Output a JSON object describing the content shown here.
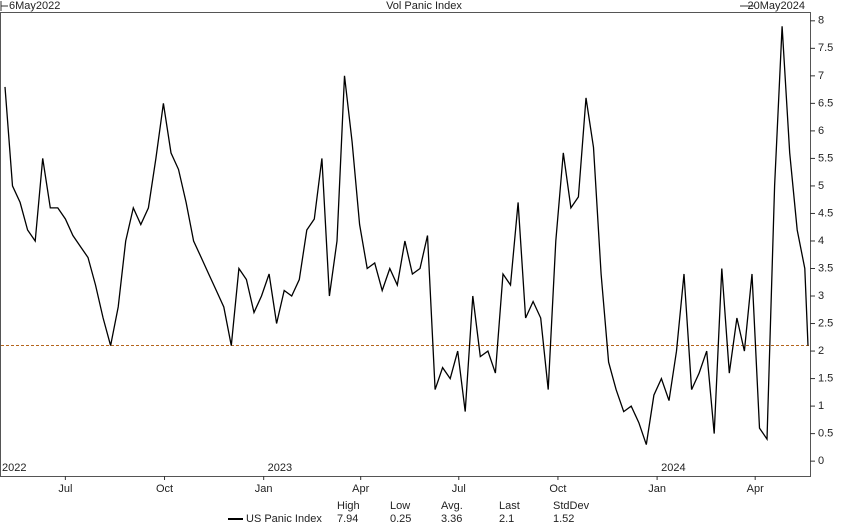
{
  "chart_data": {
    "type": "line",
    "title": "Vol Panic Index",
    "start_label": "6May2022",
    "end_label": "20May2024",
    "x": [
      "2022-05-06",
      "2022-05-13",
      "2022-05-20",
      "2022-05-27",
      "2022-06-03",
      "2022-06-10",
      "2022-06-17",
      "2022-06-24",
      "2022-07-01",
      "2022-07-08",
      "2022-07-15",
      "2022-07-22",
      "2022-07-29",
      "2022-08-05",
      "2022-08-12",
      "2022-08-19",
      "2022-08-26",
      "2022-09-02",
      "2022-09-09",
      "2022-09-16",
      "2022-09-23",
      "2022-09-30",
      "2022-10-07",
      "2022-10-14",
      "2022-10-21",
      "2022-10-28",
      "2022-11-04",
      "2022-11-11",
      "2022-11-18",
      "2022-11-25",
      "2022-12-02",
      "2022-12-09",
      "2022-12-16",
      "2022-12-23",
      "2022-12-30",
      "2023-01-06",
      "2023-01-13",
      "2023-01-20",
      "2023-01-27",
      "2023-02-03",
      "2023-02-10",
      "2023-02-17",
      "2023-02-24",
      "2023-03-03",
      "2023-03-10",
      "2023-03-17",
      "2023-03-24",
      "2023-03-31",
      "2023-04-07",
      "2023-04-14",
      "2023-04-21",
      "2023-04-28",
      "2023-05-05",
      "2023-05-12",
      "2023-05-19",
      "2023-05-26",
      "2023-06-02",
      "2023-06-09",
      "2023-06-16",
      "2023-06-23",
      "2023-06-30",
      "2023-07-07",
      "2023-07-14",
      "2023-07-21",
      "2023-07-28",
      "2023-08-04",
      "2023-08-11",
      "2023-08-18",
      "2023-08-25",
      "2023-09-01",
      "2023-09-08",
      "2023-09-15",
      "2023-09-22",
      "2023-09-29",
      "2023-10-06",
      "2023-10-13",
      "2023-10-20",
      "2023-10-27",
      "2023-11-03",
      "2023-11-10",
      "2023-11-17",
      "2023-11-24",
      "2023-12-01",
      "2023-12-08",
      "2023-12-15",
      "2023-12-22",
      "2023-12-29",
      "2024-01-05",
      "2024-01-12",
      "2024-01-19",
      "2024-01-26",
      "2024-02-02",
      "2024-02-09",
      "2024-02-16",
      "2024-02-23",
      "2024-03-01",
      "2024-03-08",
      "2024-03-15",
      "2024-03-22",
      "2024-03-29",
      "2024-04-05",
      "2024-04-12",
      "2024-04-19",
      "2024-04-26",
      "2024-05-03",
      "2024-05-10",
      "2024-05-17",
      "2024-05-20"
    ],
    "series": [
      {
        "name": "US Panic Index",
        "color": "#000000",
        "values": [
          6.8,
          5.0,
          4.7,
          4.2,
          4.0,
          5.5,
          4.6,
          4.6,
          4.4,
          4.1,
          3.9,
          3.7,
          3.2,
          2.6,
          2.1,
          2.8,
          4.0,
          4.6,
          4.3,
          4.6,
          5.5,
          6.5,
          5.6,
          5.3,
          4.7,
          4.0,
          3.7,
          3.4,
          3.1,
          2.8,
          2.1,
          3.5,
          3.3,
          2.7,
          3.0,
          3.4,
          2.5,
          3.1,
          3.0,
          3.3,
          4.2,
          4.4,
          5.5,
          3.0,
          4.0,
          7.0,
          5.8,
          4.3,
          3.5,
          3.6,
          3.1,
          3.5,
          3.2,
          4.0,
          3.4,
          3.5,
          4.1,
          1.3,
          1.7,
          1.5,
          2.0,
          0.9,
          3.0,
          1.9,
          2.0,
          1.6,
          3.4,
          3.2,
          4.7,
          2.6,
          2.9,
          2.6,
          1.3,
          4.0,
          5.6,
          4.6,
          4.8,
          6.6,
          5.7,
          3.4,
          1.8,
          1.3,
          0.9,
          1.0,
          0.7,
          0.3,
          1.2,
          1.5,
          1.1,
          2.0,
          3.4,
          1.3,
          1.6,
          2.0,
          0.5,
          3.5,
          1.6,
          2.6,
          2.0,
          3.4,
          0.6,
          0.4,
          5.0,
          7.9,
          5.6,
          4.2,
          3.5,
          2.1
        ]
      }
    ],
    "ylim": [
      -0.27,
      8.16
    ],
    "yticks": [
      0,
      0.5,
      1,
      1.5,
      2,
      2.5,
      3,
      3.5,
      4,
      4.5,
      5,
      5.5,
      6,
      6.5,
      7,
      7.5,
      8
    ],
    "xticks": [
      {
        "value": "2022-07-01",
        "label": "Jul"
      },
      {
        "value": "2022-10-01",
        "label": "Oct"
      },
      {
        "value": "2023-01-01",
        "label": "Jan"
      },
      {
        "value": "2023-04-01",
        "label": "Apr"
      },
      {
        "value": "2023-07-01",
        "label": "Jul"
      },
      {
        "value": "2023-10-01",
        "label": "Oct"
      },
      {
        "value": "2024-01-01",
        "label": "Jan"
      },
      {
        "value": "2024-04-01",
        "label": "Apr"
      }
    ],
    "year_labels": [
      {
        "value": "2022-05-06",
        "label": "2022"
      },
      {
        "value": "2023-01-01",
        "label": "2023"
      },
      {
        "value": "2024-01-01",
        "label": "2024"
      }
    ],
    "reference_line": {
      "value": 2.1,
      "color": "#b5651d"
    },
    "stats": {
      "headers": [
        "High",
        "Low",
        "Avg.",
        "Last",
        "StdDev"
      ],
      "values": [
        7.94,
        0.25,
        3.36,
        2.1,
        1.52
      ]
    }
  }
}
